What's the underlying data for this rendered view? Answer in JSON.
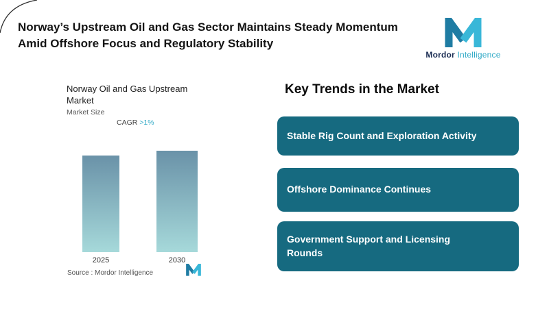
{
  "header": {
    "title": "Norway’s Upstream Oil and Gas Sector Maintains Steady Momentum Amid Offshore Focus and Regulatory Stability",
    "logo": {
      "primary": "Mordor",
      "secondary": "Intelligence"
    }
  },
  "chart": {
    "title": "Norway Oil and Gas Upstream Market",
    "subtitle": "Market Size",
    "cagr_label": "CAGR",
    "cagr_value": ">1%",
    "source_label": "Source :",
    "source_value": "Mordor Intelligence"
  },
  "chart_data": {
    "type": "bar",
    "title": "Norway Oil and Gas Upstream Market",
    "subtitle": "Market Size",
    "categories": [
      "2025",
      "2030"
    ],
    "values": [
      100,
      105
    ],
    "annotation": "CAGR >1%",
    "value_axis_visible": false,
    "grid": false,
    "legend": false
  },
  "trends": {
    "heading": "Key Trends in the Market",
    "items": [
      {
        "label": "Stable Rig Count and Exploration Activity"
      },
      {
        "label": "Offshore Dominance Continues"
      },
      {
        "label": "Government Support and Licensing\nRounds"
      }
    ]
  },
  "colors": {
    "accent_teal": "#2FA9C6",
    "logo_navy": "#1C2E54",
    "trend_box": "#166A80",
    "bar_gradient_top": "#6A92A8",
    "bar_gradient_bottom": "#A6D9DA"
  }
}
